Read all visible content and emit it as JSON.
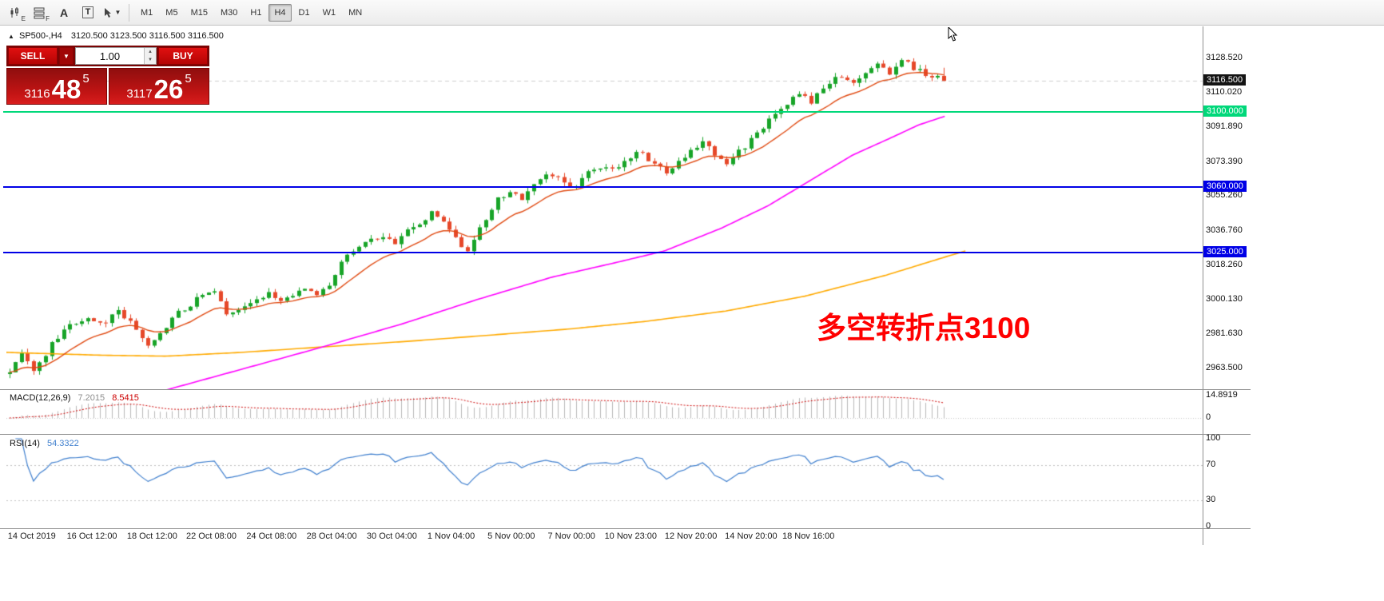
{
  "toolbar": {
    "icon_subs": [
      "E",
      "F"
    ],
    "letter_a": "A",
    "letter_t": "T",
    "timeframes": [
      "M1",
      "M5",
      "M15",
      "M30",
      "H1",
      "H4",
      "D1",
      "W1",
      "MN"
    ],
    "active_timeframe": "H4"
  },
  "chart": {
    "symbol_title": "SP500-,H4",
    "ohlc_text": "3120.500 3123.500 3116.500 3116.500",
    "annotation": {
      "text": "多空转折点3100",
      "color": "#ff0000"
    }
  },
  "trade_panel": {
    "sell_label": "SELL",
    "buy_label": "BUY",
    "volume": "1.00",
    "bid_prefix": "3116",
    "bid_big": "48",
    "bid_sup": "5",
    "ask_prefix": "3117",
    "ask_big": "26",
    "ask_sup": "5"
  },
  "chart_data": {
    "type": "candlestick",
    "symbol": "SP500-",
    "timeframe": "H4",
    "ohlc_current": {
      "open": 3120.5,
      "high": 3123.5,
      "low": 3116.5,
      "close": 3116.5
    },
    "bid": 3116.485,
    "ask": 3117.265,
    "price_range": {
      "top": 3145.5,
      "bottom": 2952.4
    },
    "high_max": 3128.52,
    "last_candle": [
      3120.5,
      3123.5,
      3116.5,
      3116.5
    ],
    "layout": {
      "candle_count": 156,
      "candle_span_frac": 0.786
    },
    "close_path": [
      [
        0.0,
        2962
      ],
      [
        0.012,
        2974
      ],
      [
        0.025,
        2960
      ],
      [
        0.045,
        2976
      ],
      [
        0.065,
        2986
      ],
      [
        0.085,
        2991
      ],
      [
        0.1,
        2987
      ],
      [
        0.115,
        2994
      ],
      [
        0.13,
        2989
      ],
      [
        0.15,
        2973
      ],
      [
        0.165,
        2985
      ],
      [
        0.185,
        2995
      ],
      [
        0.205,
        3002
      ],
      [
        0.22,
        3004
      ],
      [
        0.235,
        2991
      ],
      [
        0.255,
        2997
      ],
      [
        0.275,
        3004
      ],
      [
        0.295,
        3000
      ],
      [
        0.315,
        3007
      ],
      [
        0.33,
        3003
      ],
      [
        0.345,
        3010
      ],
      [
        0.36,
        3024
      ],
      [
        0.375,
        3028
      ],
      [
        0.395,
        3034
      ],
      [
        0.41,
        3030
      ],
      [
        0.425,
        3036
      ],
      [
        0.44,
        3042
      ],
      [
        0.455,
        3047
      ],
      [
        0.468,
        3038
      ],
      [
        0.48,
        3030
      ],
      [
        0.492,
        3026
      ],
      [
        0.505,
        3040
      ],
      [
        0.52,
        3052
      ],
      [
        0.535,
        3058
      ],
      [
        0.548,
        3054
      ],
      [
        0.562,
        3063
      ],
      [
        0.576,
        3069
      ],
      [
        0.59,
        3063
      ],
      [
        0.603,
        3060
      ],
      [
        0.617,
        3067
      ],
      [
        0.63,
        3072
      ],
      [
        0.645,
        3069
      ],
      [
        0.66,
        3075
      ],
      [
        0.675,
        3079
      ],
      [
        0.69,
        3072
      ],
      [
        0.702,
        3068
      ],
      [
        0.716,
        3074
      ],
      [
        0.73,
        3080
      ],
      [
        0.744,
        3084
      ],
      [
        0.756,
        3075
      ],
      [
        0.77,
        3072
      ],
      [
        0.785,
        3081
      ],
      [
        0.8,
        3089
      ],
      [
        0.815,
        3097
      ],
      [
        0.83,
        3104
      ],
      [
        0.845,
        3110
      ],
      [
        0.858,
        3106
      ],
      [
        0.872,
        3113
      ],
      [
        0.886,
        3119
      ],
      [
        0.9,
        3115
      ],
      [
        0.914,
        3121
      ],
      [
        0.928,
        3125
      ],
      [
        0.942,
        3121
      ],
      [
        0.956,
        3127
      ],
      [
        0.97,
        3123
      ],
      [
        0.985,
        3119
      ],
      [
        1.0,
        3116.5
      ]
    ],
    "ma_fast_period": 13,
    "ma_mid_path": [
      [
        0.17,
        2952
      ],
      [
        0.25,
        2963
      ],
      [
        0.33,
        2974
      ],
      [
        0.42,
        2987
      ],
      [
        0.5,
        3000
      ],
      [
        0.58,
        3012
      ],
      [
        0.65,
        3020
      ],
      [
        0.7,
        3026
      ],
      [
        0.76,
        3038
      ],
      [
        0.81,
        3050
      ],
      [
        0.86,
        3065
      ],
      [
        0.9,
        3077
      ],
      [
        0.94,
        3086
      ],
      [
        0.97,
        3093
      ],
      [
        1.0,
        3098
      ]
    ],
    "ma_slow_path": [
      [
        0.0,
        2972
      ],
      [
        0.1,
        2970.5
      ],
      [
        0.17,
        2970
      ],
      [
        0.25,
        2972
      ],
      [
        0.34,
        2975
      ],
      [
        0.43,
        2978
      ],
      [
        0.51,
        2981
      ],
      [
        0.6,
        2984.5
      ],
      [
        0.68,
        2988.5
      ],
      [
        0.765,
        2994
      ],
      [
        0.85,
        3002
      ],
      [
        0.935,
        3013
      ],
      [
        1.0,
        3023
      ],
      [
        1.02,
        3026
      ]
    ],
    "levels": [
      {
        "price": 3100.0,
        "label": "3100.000",
        "color": "#00d87a"
      },
      {
        "price": 3060.0,
        "label": "3060.000",
        "color": "#0000e6"
      },
      {
        "price": 3025.0,
        "label": "3025.000",
        "color": "#0000e6"
      }
    ],
    "current_price": {
      "price": 3116.5,
      "label": "3116.500",
      "color": "#141414"
    },
    "axis_labels": [
      "3128.520",
      "3110.020",
      "3091.890",
      "3073.390",
      "3055.260",
      "3036.760",
      "3018.260",
      "3000.130",
      "2981.630",
      "2963.500"
    ],
    "colors": {
      "bull": "#18a428",
      "bear": "#e6482a",
      "ma_fast": "#e04a12",
      "ma_mid": "#ff00ff",
      "ma_slow": "#ffaa00",
      "macd_hist": "#b8b8b8",
      "macd_signal": "#cc0000",
      "rsi": "#3f7fce"
    },
    "macd": {
      "label": "MACD(12,26,9)",
      "value_macd": "7.2015",
      "value_signal": "8.5415",
      "axis_max_label": "14.8919",
      "axis_zero_label": "0",
      "fast": 12,
      "slow": 26,
      "signal": 9
    },
    "rsi": {
      "label": "RSI(14)",
      "value": "54.3322",
      "period": 14,
      "axis": [
        "100",
        "70",
        "30",
        "0"
      ]
    },
    "time_labels": [
      {
        "label": "14 Oct 2019",
        "t": 0.027
      },
      {
        "label": "16 Oct 12:00",
        "t": 0.091
      },
      {
        "label": "18 Oct 12:00",
        "t": 0.155
      },
      {
        "label": "22 Oct 08:00",
        "t": 0.218
      },
      {
        "label": "24 Oct 08:00",
        "t": 0.282
      },
      {
        "label": "28 Oct 04:00",
        "t": 0.346
      },
      {
        "label": "30 Oct 04:00",
        "t": 0.41
      },
      {
        "label": "1 Nov 04:00",
        "t": 0.473
      },
      {
        "label": "5 Nov 00:00",
        "t": 0.537
      },
      {
        "label": "7 Nov 00:00",
        "t": 0.601
      },
      {
        "label": "10 Nov 23:00",
        "t": 0.664
      },
      {
        "label": "12 Nov 20:00",
        "t": 0.728
      },
      {
        "label": "14 Nov 20:00",
        "t": 0.792
      },
      {
        "label": "18 Nov 16:00",
        "t": 0.853
      }
    ]
  }
}
